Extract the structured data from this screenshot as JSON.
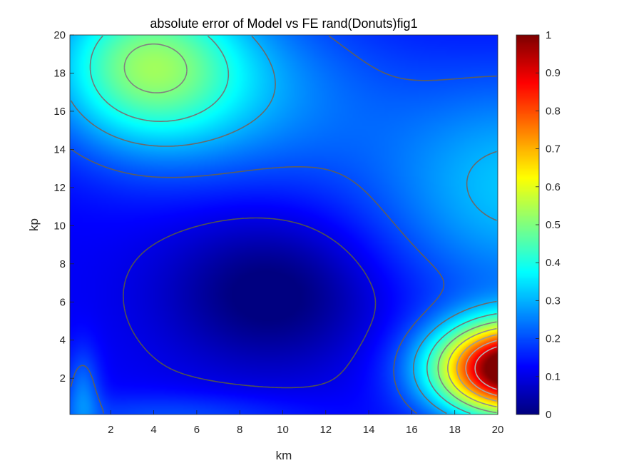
{
  "chart_data": {
    "type": "heatmap",
    "title": "absolute error of Model vs FE rand(Donuts)fig1",
    "xlabel": "km",
    "ylabel": "kp",
    "xlim": [
      0.1,
      20
    ],
    "ylim": [
      0.1,
      20
    ],
    "xticks": [
      2,
      4,
      6,
      8,
      10,
      12,
      14,
      16,
      18,
      20
    ],
    "yticks": [
      2,
      4,
      6,
      8,
      10,
      12,
      14,
      16,
      18,
      20
    ],
    "colorbar": {
      "colormap": "jet",
      "range": [
        0,
        1
      ],
      "ticks": [
        0,
        0.1,
        0.2,
        0.3,
        0.4,
        0.5,
        0.6,
        0.7,
        0.8,
        0.9,
        1
      ]
    },
    "contour_levels": [
      0.1,
      0.2,
      0.3,
      0.4,
      0.5,
      0.6,
      0.7,
      0.8,
      0.9
    ],
    "features": [
      {
        "name": "upper-left local maximum",
        "km": 3.7,
        "kp": 18.5,
        "value": 0.4
      },
      {
        "name": "lower-right peak",
        "km": 20,
        "kp": 2.5,
        "value": 1.0
      },
      {
        "name": "central minimum basin",
        "km": 9.5,
        "kp": 6.5,
        "value": 0.02
      },
      {
        "name": "small bump near origin",
        "km": 0.8,
        "kp": 1.5,
        "value": 0.22
      }
    ]
  }
}
